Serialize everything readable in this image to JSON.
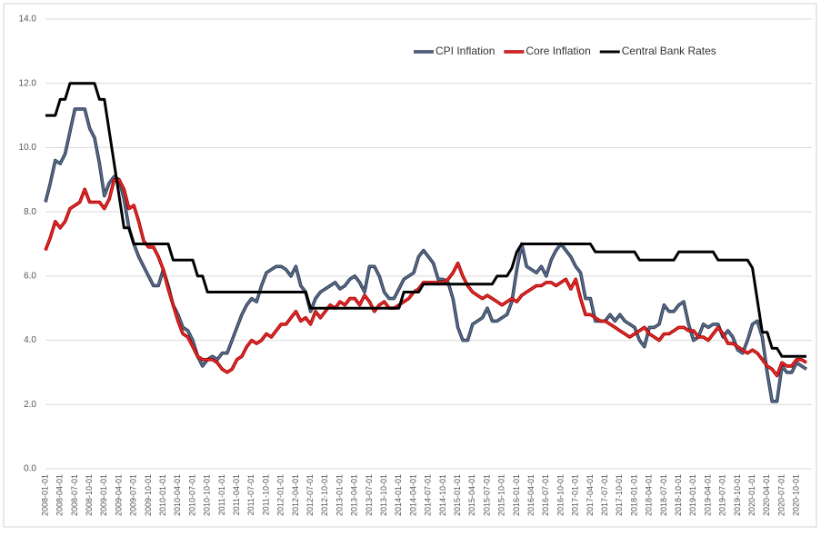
{
  "chart_data": {
    "type": "line",
    "categories": [
      "2008-01-01",
      null,
      null,
      "2008-04-01",
      null,
      null,
      "2008-07-01",
      null,
      null,
      "2008-10-01",
      null,
      null,
      "2009-01-01",
      null,
      null,
      "2009-04-01",
      null,
      null,
      "2009-07-01",
      null,
      null,
      "2009-10-01",
      null,
      null,
      "2010-01-01",
      null,
      null,
      "2010-04-01",
      null,
      null,
      "2010-07-01",
      null,
      null,
      "2010-10-01",
      null,
      null,
      "2011-01-01",
      null,
      null,
      "2011-04-01",
      null,
      null,
      "2011-07-01",
      null,
      null,
      "2011-10-01",
      null,
      null,
      "2012-01-01",
      null,
      null,
      "2012-04-01",
      null,
      null,
      "2012-07-01",
      null,
      null,
      "2012-10-01",
      null,
      null,
      "2013-01-01",
      null,
      null,
      "2013-04-01",
      null,
      null,
      "2013-07-01",
      null,
      null,
      "2013-10-01",
      null,
      null,
      "2014-01-01",
      null,
      null,
      "2014-04-01",
      null,
      null,
      "2014-07-01",
      null,
      null,
      "2014-10-01",
      null,
      null,
      "2015-01-01",
      null,
      null,
      "2015-04-01",
      null,
      null,
      "2015-07-01",
      null,
      null,
      "2015-10-01",
      null,
      null,
      "2016-01-01",
      null,
      null,
      "2016-04-01",
      null,
      null,
      "2016-07-01",
      null,
      null,
      "2016-10-01",
      null,
      null,
      "2017-01-01",
      null,
      null,
      "2017-04-01",
      null,
      null,
      "2017-07-01",
      null,
      null,
      "2017-10-01",
      null,
      null,
      "2018-01-01",
      null,
      null,
      "2018-04-01",
      null,
      null,
      "2018-07-01",
      null,
      null,
      "2018-10-01",
      null,
      null,
      "2019-01-01",
      null,
      null,
      "2019-04-01",
      null,
      null,
      "2019-07-01",
      null,
      null,
      "2019-10-01",
      null,
      null,
      "2020-01-01",
      null,
      null,
      "2020-04-01",
      null,
      null,
      "2020-07-01",
      null,
      null,
      "2020-10-01",
      null,
      null
    ],
    "series": [
      {
        "name": "CPI Inflation",
        "color": "#5b7090",
        "values": [
          8.3,
          8.9,
          9.6,
          9.5,
          9.8,
          10.5,
          11.2,
          11.2,
          11.2,
          10.6,
          10.3,
          9.5,
          8.5,
          8.9,
          9.1,
          9.0,
          8.4,
          7.5,
          7.0,
          6.6,
          6.3,
          6.0,
          5.7,
          5.7,
          6.2,
          5.7,
          5.1,
          4.8,
          4.4,
          4.3,
          4.0,
          3.5,
          3.2,
          3.4,
          3.5,
          3.4,
          3.6,
          3.6,
          4.0,
          4.4,
          4.8,
          5.1,
          5.3,
          5.2,
          5.7,
          6.1,
          6.2,
          6.3,
          6.3,
          6.2,
          6.0,
          6.3,
          5.7,
          5.5,
          4.9,
          5.3,
          5.5,
          5.6,
          5.7,
          5.8,
          5.6,
          5.7,
          5.9,
          6.0,
          5.8,
          5.5,
          6.3,
          6.3,
          6.0,
          5.5,
          5.3,
          5.3,
          5.6,
          5.9,
          6.0,
          6.1,
          6.6,
          6.8,
          6.6,
          6.4,
          5.9,
          5.9,
          5.8,
          5.3,
          4.4,
          4.0,
          4.0,
          4.5,
          4.6,
          4.7,
          5.0,
          4.6,
          4.6,
          4.7,
          4.8,
          5.2,
          6.2,
          7.0,
          6.3,
          6.2,
          6.1,
          6.3,
          6.0,
          6.5,
          6.8,
          7.0,
          6.8,
          6.6,
          6.3,
          6.1,
          5.3,
          5.3,
          4.6,
          4.6,
          4.6,
          4.8,
          4.6,
          4.8,
          4.6,
          4.5,
          4.4,
          4.0,
          3.8,
          4.4,
          4.4,
          4.5,
          5.1,
          4.9,
          4.9,
          5.1,
          5.2,
          4.5,
          4.0,
          4.1,
          4.5,
          4.4,
          4.5,
          4.5,
          4.1,
          4.3,
          4.1,
          3.7,
          3.6,
          4.0,
          4.5,
          4.6,
          4.1,
          3.0,
          2.1,
          2.1,
          3.2,
          3.0,
          3.0,
          3.3,
          3.2,
          3.1
        ]
      },
      {
        "name": "Core Inflation",
        "color": "#e03030",
        "values": [
          6.8,
          7.2,
          7.7,
          7.5,
          7.7,
          8.1,
          8.2,
          8.3,
          8.7,
          8.3,
          8.3,
          8.3,
          8.1,
          8.4,
          9.0,
          9.0,
          8.7,
          8.1,
          8.2,
          7.7,
          7.1,
          6.9,
          6.9,
          6.6,
          6.2,
          5.6,
          5.1,
          4.6,
          4.2,
          4.1,
          3.8,
          3.5,
          3.4,
          3.4,
          3.4,
          3.3,
          3.1,
          3.0,
          3.1,
          3.4,
          3.5,
          3.8,
          4.0,
          3.9,
          4.0,
          4.2,
          4.1,
          4.3,
          4.5,
          4.5,
          4.7,
          4.9,
          4.6,
          4.7,
          4.5,
          4.9,
          4.7,
          4.9,
          5.1,
          5.0,
          5.2,
          5.1,
          5.3,
          5.3,
          5.1,
          5.4,
          5.2,
          4.9,
          5.1,
          5.2,
          5.0,
          5.0,
          5.1,
          5.2,
          5.3,
          5.5,
          5.6,
          5.8,
          5.8,
          5.8,
          5.8,
          5.8,
          5.9,
          6.1,
          6.4,
          6.0,
          5.7,
          5.5,
          5.4,
          5.3,
          5.4,
          5.3,
          5.2,
          5.1,
          5.2,
          5.3,
          5.2,
          5.4,
          5.5,
          5.6,
          5.7,
          5.7,
          5.8,
          5.8,
          5.7,
          5.8,
          5.9,
          5.6,
          5.9,
          5.3,
          4.8,
          4.8,
          4.7,
          4.6,
          4.6,
          4.5,
          4.4,
          4.3,
          4.2,
          4.1,
          4.2,
          4.3,
          4.4,
          4.2,
          4.1,
          4.0,
          4.2,
          4.2,
          4.3,
          4.4,
          4.4,
          4.3,
          4.3,
          4.1,
          4.1,
          4.0,
          4.2,
          4.4,
          4.2,
          3.9,
          3.9,
          3.8,
          3.7,
          3.6,
          3.7,
          3.6,
          3.4,
          3.2,
          3.1,
          2.9,
          3.3,
          3.2,
          3.2,
          3.4,
          3.4,
          3.3
        ]
      },
      {
        "name": "Central Bank Rates",
        "color": "#000000",
        "values": [
          11,
          11,
          11,
          11.5,
          11.5,
          12,
          12,
          12,
          12,
          12,
          12,
          11.5,
          11.5,
          10.5,
          9.5,
          8.5,
          7.5,
          7.5,
          7,
          7,
          7,
          7,
          7,
          7,
          7,
          7,
          6.5,
          6.5,
          6.5,
          6.5,
          6.5,
          6,
          6,
          5.5,
          5.5,
          5.5,
          5.5,
          5.5,
          5.5,
          5.5,
          5.5,
          5.5,
          5.5,
          5.5,
          5.5,
          5.5,
          5.5,
          5.5,
          5.5,
          5.5,
          5.5,
          5.5,
          5.5,
          5.5,
          5,
          5,
          5,
          5,
          5,
          5,
          5,
          5,
          5,
          5,
          5,
          5,
          5,
          5,
          5,
          5,
          5,
          5,
          5,
          5.5,
          5.5,
          5.5,
          5.5,
          5.75,
          5.75,
          5.75,
          5.75,
          5.75,
          5.75,
          5.75,
          5.75,
          5.75,
          5.75,
          5.75,
          5.75,
          5.75,
          5.75,
          5.75,
          6,
          6,
          6,
          6.25,
          6.75,
          7,
          7,
          7,
          7,
          7,
          7,
          7,
          7,
          7,
          7,
          7,
          7,
          7,
          7,
          7,
          6.75,
          6.75,
          6.75,
          6.75,
          6.75,
          6.75,
          6.75,
          6.75,
          6.75,
          6.5,
          6.5,
          6.5,
          6.5,
          6.5,
          6.5,
          6.5,
          6.5,
          6.75,
          6.75,
          6.75,
          6.75,
          6.75,
          6.75,
          6.75,
          6.75,
          6.5,
          6.5,
          6.5,
          6.5,
          6.5,
          6.5,
          6.5,
          6.25,
          5.25,
          4.25,
          4.25,
          3.75,
          3.75,
          3.5,
          3.5,
          3.5,
          3.5,
          3.5,
          3.5
        ]
      }
    ],
    "ylim": [
      0,
      14
    ],
    "yticks": [
      {
        "value": 0,
        "label": "0.0"
      },
      {
        "value": 2,
        "label": "2.0"
      },
      {
        "value": 4,
        "label": "4.0"
      },
      {
        "value": 6,
        "label": "6.0"
      },
      {
        "value": 8,
        "label": "8.0"
      },
      {
        "value": 10,
        "label": "10.0"
      },
      {
        "value": 12,
        "label": "12.0"
      },
      {
        "value": 14,
        "label": "14.0"
      }
    ],
    "grid": true,
    "legend": "top-right"
  }
}
